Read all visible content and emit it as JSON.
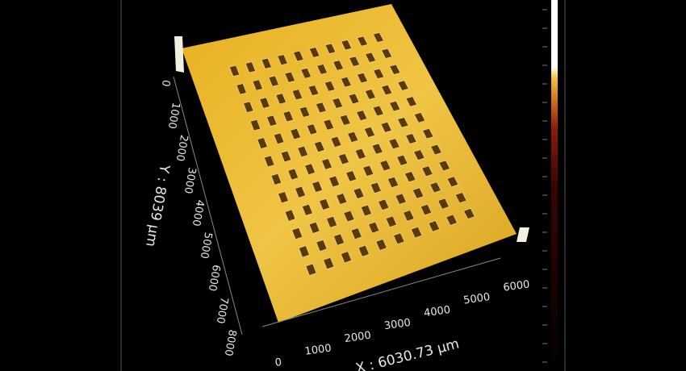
{
  "x_axis": {
    "label": "X : 6030.73 µm",
    "ticks": [
      0,
      1000,
      2000,
      3000,
      4000,
      5000,
      6000
    ]
  },
  "y_axis": {
    "label": "Y : 8039 µm",
    "ticks": [
      0,
      1000,
      2000,
      3000,
      4000,
      5000,
      6000,
      7000,
      8000
    ]
  }
}
